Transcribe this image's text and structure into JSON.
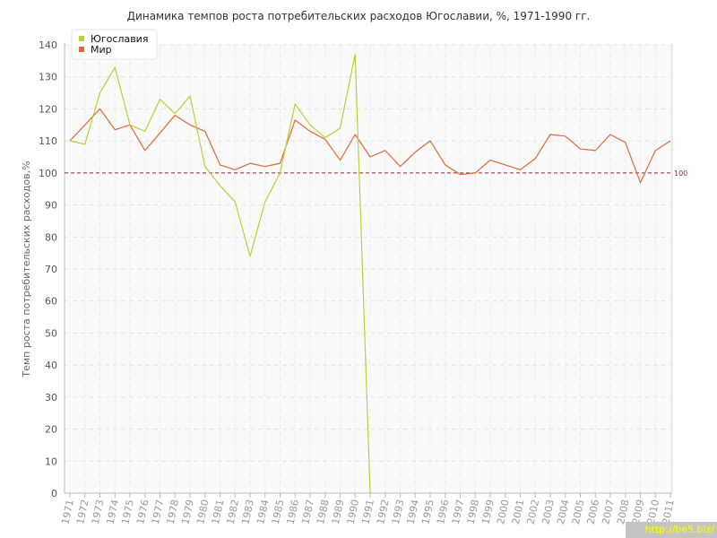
{
  "chart_data": {
    "type": "line",
    "title": "Динамика темпов роста потребительских расходов Югославии, %, 1971-1990 гг.",
    "xlabel": "",
    "ylabel": "Темп роста потребительских расходов,%",
    "ylim": [
      0,
      140
    ],
    "yticks": [
      0,
      10,
      20,
      30,
      40,
      50,
      60,
      70,
      80,
      90,
      100,
      110,
      120,
      130,
      140
    ],
    "x": [
      "1971",
      "1972",
      "1973",
      "1974",
      "1975",
      "1976",
      "1977",
      "1978",
      "1979",
      "1980",
      "1981",
      "1982",
      "1983",
      "1984",
      "1985",
      "1986",
      "1987",
      "1988",
      "1989",
      "1990",
      "1991",
      "1992",
      "1993",
      "1994",
      "1995",
      "1996",
      "1997",
      "1998",
      "1999",
      "2000",
      "2001",
      "2002",
      "2003",
      "2004",
      "2005",
      "2006",
      "2007",
      "2008",
      "2009",
      "2010",
      "2011"
    ],
    "grid": true,
    "legend_position": "top-left",
    "reference_line": {
      "value": 100,
      "label": "100",
      "color": "#8a2b3a"
    },
    "series": [
      {
        "name": "Югославия",
        "color": "#b5d334",
        "values": [
          110,
          109,
          125,
          133,
          115,
          113,
          123,
          118.5,
          124,
          102,
          96,
          91,
          74,
          91,
          100,
          121.5,
          115,
          111,
          114,
          137,
          0,
          null,
          null,
          null,
          null,
          null,
          null,
          null,
          null,
          null,
          null,
          null,
          null,
          null,
          null,
          null,
          null,
          null,
          null,
          null,
          null
        ]
      },
      {
        "name": "Мир",
        "color": "#e0683a",
        "values": [
          110,
          115,
          120,
          113.5,
          115,
          107,
          112.5,
          118,
          115,
          113,
          102.5,
          101,
          103,
          102,
          103,
          116.5,
          113,
          110.5,
          104,
          112,
          105,
          107,
          102,
          106.5,
          110,
          102.5,
          99.5,
          100,
          104,
          102.5,
          101,
          104.5,
          112,
          111.5,
          107.5,
          107,
          112,
          109.5,
          97,
          107,
          110
        ]
      }
    ]
  },
  "watermark": "http://be5.biz/"
}
